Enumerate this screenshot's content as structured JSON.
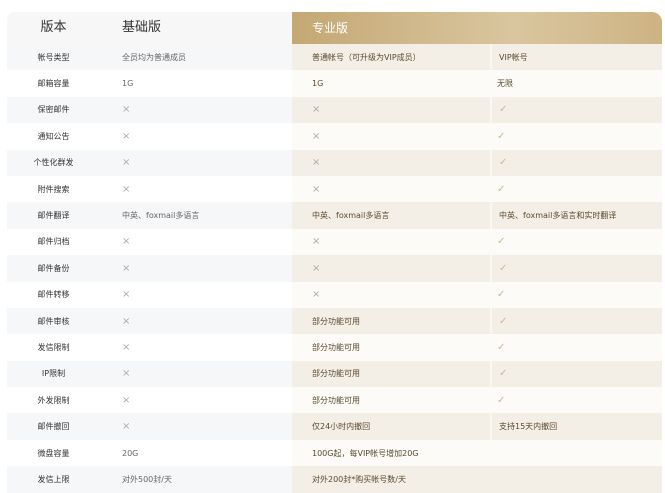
{
  "header": {
    "label": "版本",
    "basic": "基础版",
    "pro": "专业版"
  },
  "rows": [
    {
      "label": "帐号类型",
      "basic": "全员均为普通成员",
      "pro": "普通帐号（可升级为VIP成员）",
      "vip": "VIP帐号"
    },
    {
      "label": "邮箱容量",
      "basic": "1G",
      "pro": "1G",
      "vip": "无限"
    },
    {
      "label": "保密邮件",
      "basic": "×",
      "pro": "×",
      "vip": "✓"
    },
    {
      "label": "通知公告",
      "basic": "×",
      "pro": "×",
      "vip": "✓"
    },
    {
      "label": "个性化群发",
      "basic": "×",
      "pro": "×",
      "vip": "✓"
    },
    {
      "label": "附件搜索",
      "basic": "×",
      "pro": "×",
      "vip": "✓"
    },
    {
      "label": "邮件翻译",
      "basic": "中英、foxmail多语言",
      "pro": "中英、foxmail多语言",
      "vip": "中英、foxmail多语言和实时翻译"
    },
    {
      "label": "邮件归档",
      "basic": "×",
      "pro": "×",
      "vip": "✓"
    },
    {
      "label": "邮件备份",
      "basic": "×",
      "pro": "×",
      "vip": "✓"
    },
    {
      "label": "邮件转移",
      "basic": "×",
      "pro": "×",
      "vip": "✓"
    },
    {
      "label": "邮件审核",
      "basic": "×",
      "pro": "部分功能可用",
      "vip": "✓"
    },
    {
      "label": "发信限制",
      "basic": "×",
      "pro": "部分功能可用",
      "vip": "✓"
    },
    {
      "label": "IP限制",
      "basic": "×",
      "pro": "部分功能可用",
      "vip": "✓"
    },
    {
      "label": "外发限制",
      "basic": "×",
      "pro": "部分功能可用",
      "vip": "✓"
    },
    {
      "label": "邮件撤回",
      "basic": "×",
      "pro": "仅24小时内撤回",
      "vip": "支持15天内撤回"
    },
    {
      "label": "微盘容量",
      "basic": "20G",
      "pro_span": "100G起，每VIP帐号增加20G"
    },
    {
      "label": "发信上限",
      "basic": "对外500封/天",
      "pro_span": "对外200封*购买帐号数/天"
    }
  ]
}
